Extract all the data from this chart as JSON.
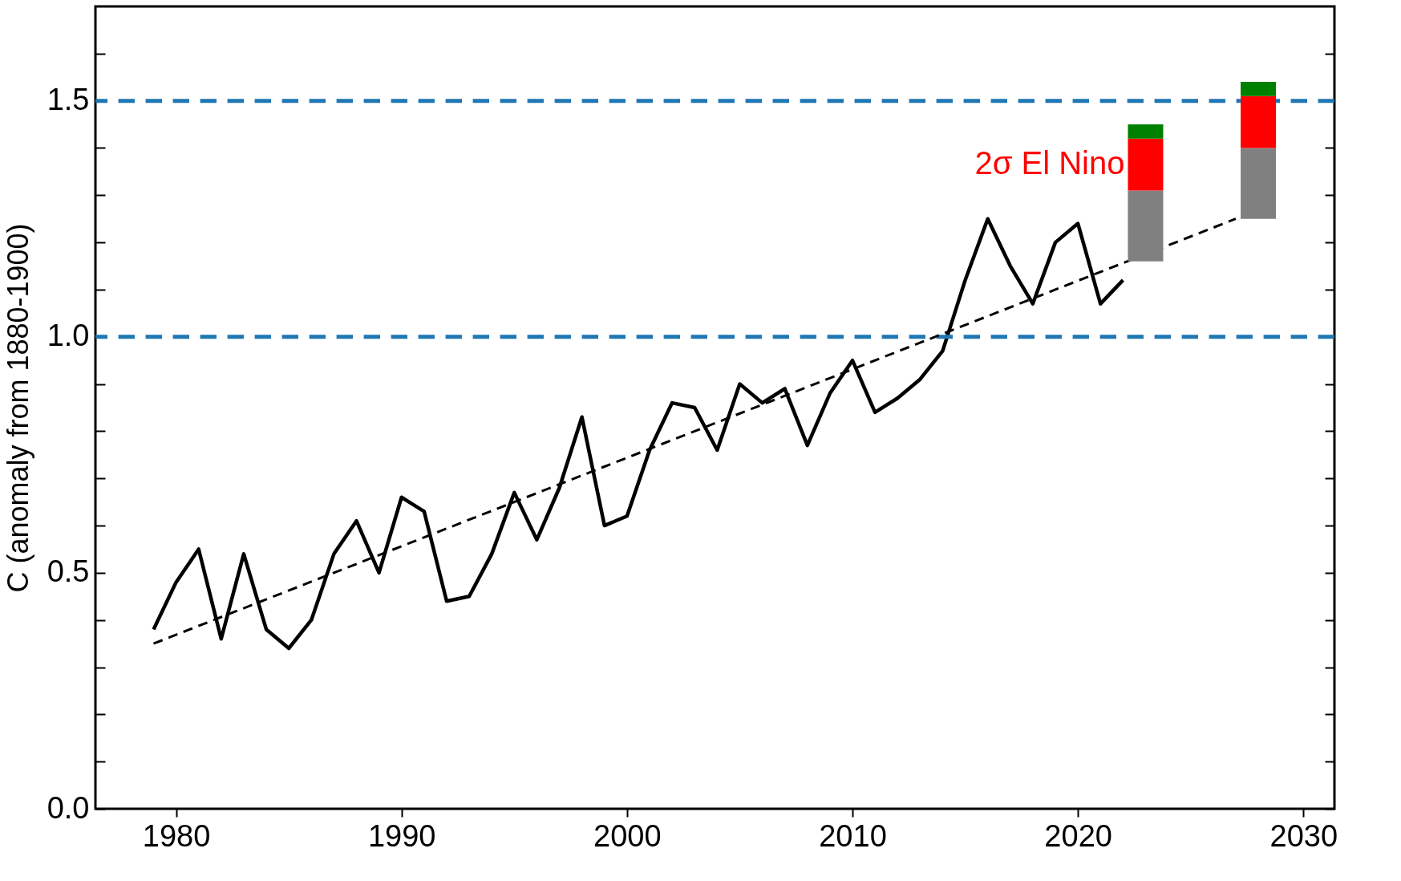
{
  "chart_data": {
    "type": "line",
    "ylabel": "C (anomaly from 1880-1900)",
    "xlim": [
      1976.6,
      2031.2
    ],
    "xticks": [
      1980,
      1990,
      2000,
      2010,
      2020,
      2030
    ],
    "ylim": [
      0,
      1.7
    ],
    "yticks": [
      {
        "value": 0,
        "label": "0.0"
      },
      {
        "value": 0.1,
        "label": null
      },
      {
        "value": 0.2,
        "label": null
      },
      {
        "value": 0.3,
        "label": null
      },
      {
        "value": 0.4,
        "label": null
      },
      {
        "value": 0.5,
        "label": "0.5"
      },
      {
        "value": 0.6,
        "label": null
      },
      {
        "value": 0.7,
        "label": null
      },
      {
        "value": 0.8,
        "label": null
      },
      {
        "value": 0.9,
        "label": null
      },
      {
        "value": 1,
        "label": "1.0"
      },
      {
        "value": 1.1,
        "label": null
      },
      {
        "value": 1.2,
        "label": null
      },
      {
        "value": 1.3,
        "label": null
      },
      {
        "value": 1.4,
        "label": null
      },
      {
        "value": 1.5,
        "label": "1.5"
      },
      {
        "value": 1.6,
        "label": null
      }
    ],
    "grid": false,
    "stacked": true,
    "series": [
      {
        "color": "#000000",
        "x": [
          1979,
          1980,
          1981,
          1982,
          1983,
          1984,
          1985,
          1986,
          1987,
          1988,
          1989,
          1990,
          1991,
          1992,
          1993,
          1994,
          1995,
          1996,
          1997,
          1998,
          1999,
          2000,
          2001,
          2002,
          2003,
          2004,
          2005,
          2006,
          2007,
          2008,
          2009,
          2010,
          2011,
          2012,
          2013,
          2014,
          2015,
          2016,
          2017,
          2018,
          2019,
          2020,
          2021,
          2022
        ],
        "values": [
          0.38,
          0.48,
          0.55,
          0.36,
          0.54,
          0.38,
          0.34,
          0.4,
          0.54,
          0.61,
          0.5,
          0.66,
          0.63,
          0.44,
          0.45,
          0.54,
          0.67,
          0.57,
          0.68,
          0.83,
          0.6,
          0.62,
          0.76,
          0.86,
          0.85,
          0.76,
          0.9,
          0.86,
          0.89,
          0.77,
          0.88,
          0.95,
          0.84,
          0.87,
          0.91,
          0.97,
          1.12,
          1.25,
          1.15,
          1.07,
          1.2,
          1.24,
          1.07,
          1.12
        ]
      },
      {
        "type": "line",
        "color": "#000000",
        "line_style": "dashed",
        "x": [
          1979,
          2027
        ],
        "values": [
          0.35,
          1.25
        ]
      },
      {
        "type": "bar",
        "color": "#808080",
        "x": [
          2023,
          2028
        ],
        "base": [
          1.16,
          1.25
        ],
        "values": [
          0.15,
          0.15
        ]
      },
      {
        "type": "bar",
        "color": "#ff0000",
        "x": [
          2023,
          2028
        ],
        "values": [
          0.11,
          0.11
        ]
      },
      {
        "type": "bar",
        "color": "#008000",
        "x": [
          2023,
          2028
        ],
        "values": [
          0.03,
          0.03
        ]
      }
    ],
    "ref_lines": [
      {
        "axis": "y",
        "value": 1,
        "color": "#1f77b4",
        "line_style": "dashed"
      },
      {
        "axis": "y",
        "value": 1.5,
        "color": "#1f77b4",
        "line_style": "dashed"
      }
    ],
    "annotations": [
      "2σ El Nino"
    ]
  }
}
